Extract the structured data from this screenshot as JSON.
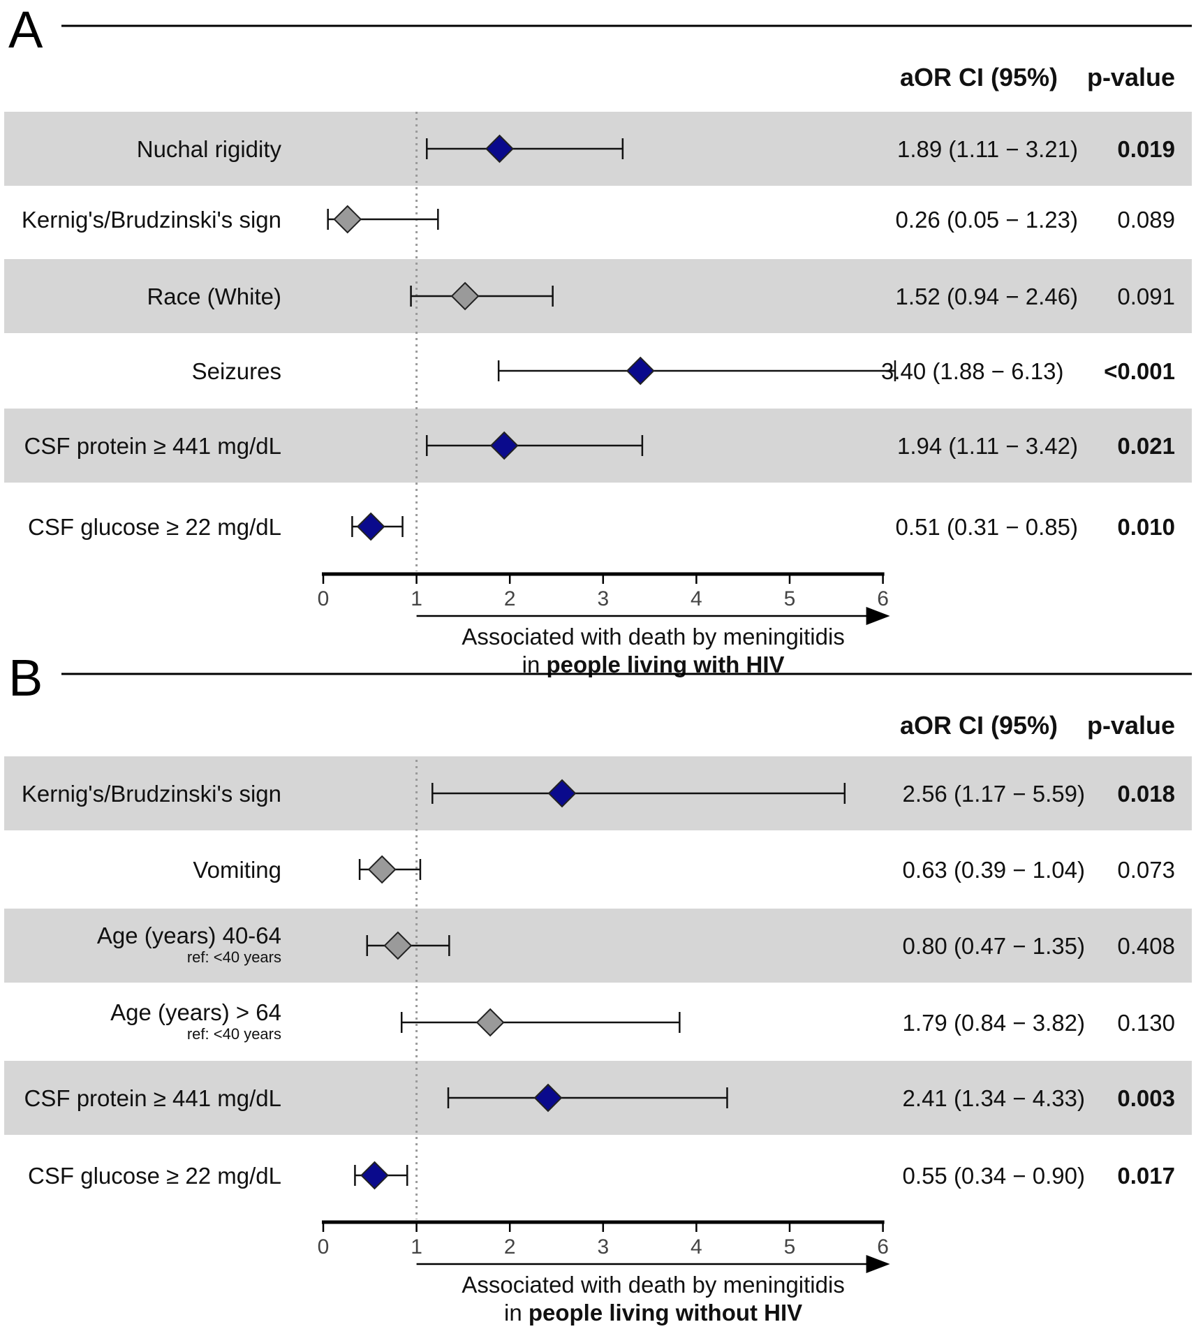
{
  "chart_data": [
    {
      "type": "forest",
      "panel_label": "A",
      "header_ci": "aOR CI (95%)",
      "header_p": "p-value",
      "x_ticks": [
        0,
        1,
        2,
        3,
        4,
        5,
        6
      ],
      "xlim": [
        0,
        6
      ],
      "reference_line": 1,
      "xlabel_line1": "Associated with death by meningitidis",
      "xlabel_line2_prefix": "in ",
      "xlabel_line2_bold": "people living with HIV",
      "colors": {
        "significant": "#0a0a8c",
        "nonsignificant": "#9a9a9a",
        "band": "#d6d6d6"
      },
      "rows": [
        {
          "label": "Nuchal rigidity",
          "sublabel": "",
          "est": 1.89,
          "lo": 1.11,
          "hi": 3.21,
          "ci_text": "1.89 (1.11 − 3.21)",
          "p": "0.019",
          "significant": true,
          "shaded": true
        },
        {
          "label": "Kernig's/Brudzinski's sign",
          "sublabel": "",
          "est": 0.26,
          "lo": 0.05,
          "hi": 1.23,
          "ci_text": "0.26 (0.05 − 1.23)",
          "p": "0.089",
          "significant": false,
          "shaded": false
        },
        {
          "label": "Race (White)",
          "sublabel": "",
          "est": 1.52,
          "lo": 0.94,
          "hi": 2.46,
          "ci_text": "1.52 (0.94 − 2.46)",
          "p": "0.091",
          "significant": false,
          "shaded": true
        },
        {
          "label": "Seizures",
          "sublabel": "",
          "est": 3.4,
          "lo": 1.88,
          "hi": 6.13,
          "ci_text": "3.40 (1.88 − 6.13)",
          "p": "<0.001",
          "significant": true,
          "shaded": false
        },
        {
          "label": "CSF protein ≥ 441 mg/dL",
          "sublabel": "",
          "est": 1.94,
          "lo": 1.11,
          "hi": 3.42,
          "ci_text": "1.94 (1.11 − 3.42)",
          "p": "0.021",
          "significant": true,
          "shaded": true
        },
        {
          "label": "CSF glucose ≥ 22 mg/dL",
          "sublabel": "",
          "est": 0.51,
          "lo": 0.31,
          "hi": 0.85,
          "ci_text": "0.51 (0.31 − 0.85)",
          "p": "0.010",
          "significant": true,
          "shaded": false
        }
      ]
    },
    {
      "type": "forest",
      "panel_label": "B",
      "header_ci": "aOR CI (95%)",
      "header_p": "p-value",
      "x_ticks": [
        0,
        1,
        2,
        3,
        4,
        5,
        6
      ],
      "xlim": [
        0,
        6
      ],
      "reference_line": 1,
      "xlabel_line1": "Associated with death by meningitidis",
      "xlabel_line2_prefix": "in ",
      "xlabel_line2_bold": "people living without HIV",
      "colors": {
        "significant": "#0a0a8c",
        "nonsignificant": "#9a9a9a",
        "band": "#d6d6d6"
      },
      "rows": [
        {
          "label": "Kernig's/Brudzinski's sign",
          "sublabel": "",
          "est": 2.56,
          "lo": 1.17,
          "hi": 5.59,
          "ci_text": "2.56 (1.17 − 5.59)",
          "p": "0.018",
          "significant": true,
          "shaded": true
        },
        {
          "label": "Vomiting",
          "sublabel": "",
          "est": 0.63,
          "lo": 0.39,
          "hi": 1.04,
          "ci_text": "0.63 (0.39 − 1.04)",
          "p": "0.073",
          "significant": false,
          "shaded": false
        },
        {
          "label": "Age (years) 40-64",
          "sublabel": "ref: <40 years",
          "est": 0.8,
          "lo": 0.47,
          "hi": 1.35,
          "ci_text": "0.80 (0.47 − 1.35)",
          "p": "0.408",
          "significant": false,
          "shaded": true
        },
        {
          "label": "Age (years) > 64",
          "sublabel": "ref: <40 years",
          "est": 1.79,
          "lo": 0.84,
          "hi": 3.82,
          "ci_text": "1.79 (0.84 − 3.82)",
          "p": "0.130",
          "significant": false,
          "shaded": false
        },
        {
          "label": "CSF protein ≥ 441 mg/dL",
          "sublabel": "",
          "est": 2.41,
          "lo": 1.34,
          "hi": 4.33,
          "ci_text": "2.41 (1.34 − 4.33)",
          "p": "0.003",
          "significant": true,
          "shaded": true
        },
        {
          "label": "CSF glucose ≥ 22 mg/dL",
          "sublabel": "",
          "est": 0.55,
          "lo": 0.34,
          "hi": 0.9,
          "ci_text": "0.55 (0.34 − 0.90)",
          "p": "0.017",
          "significant": true,
          "shaded": false
        }
      ]
    }
  ]
}
